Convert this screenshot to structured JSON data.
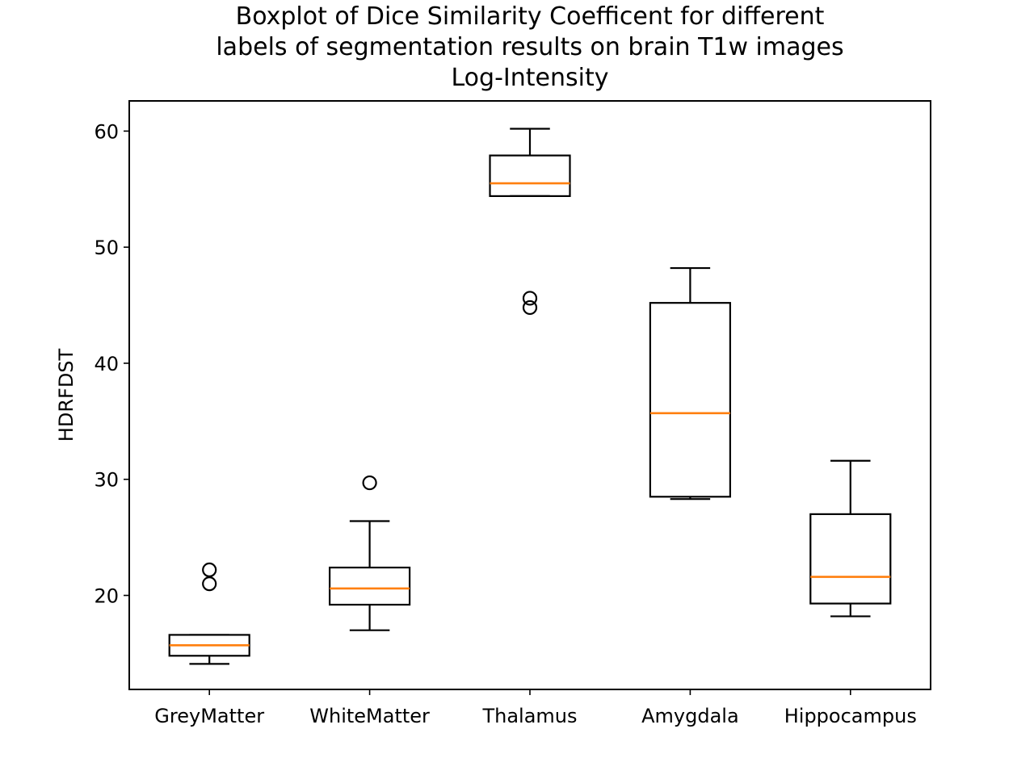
{
  "chart_data": {
    "type": "boxplot",
    "title_lines": [
      "Boxplot of Dice Similarity Coefficent for different",
      "labels of segmentation results on brain T1w images",
      "Log-Intensity"
    ],
    "xlabel": "",
    "ylabel": "HDRFDST",
    "ylim": [
      11.9,
      62.6
    ],
    "yticks": [
      20,
      30,
      40,
      50,
      60
    ],
    "categories": [
      "GreyMatter",
      "WhiteMatter",
      "Thalamus",
      "Amygdala",
      "Hippocampus"
    ],
    "boxes": [
      {
        "label": "GreyMatter",
        "whisker_low": 14.1,
        "q1": 14.8,
        "median": 15.7,
        "q3": 16.6,
        "whisker_high": 16.6,
        "outliers": [
          21.0,
          22.2
        ]
      },
      {
        "label": "WhiteMatter",
        "whisker_low": 17.0,
        "q1": 19.2,
        "median": 20.6,
        "q3": 22.4,
        "whisker_high": 26.4,
        "outliers": [
          29.7
        ]
      },
      {
        "label": "Thalamus",
        "whisker_low": 54.4,
        "q1": 54.4,
        "median": 55.5,
        "q3": 57.9,
        "whisker_high": 60.2,
        "outliers": [
          44.8,
          45.6
        ]
      },
      {
        "label": "Amygdala",
        "whisker_low": 28.3,
        "q1": 28.5,
        "median": 35.7,
        "q3": 45.2,
        "whisker_high": 48.2,
        "outliers": []
      },
      {
        "label": "Hippocampus",
        "whisker_low": 18.2,
        "q1": 19.3,
        "median": 21.6,
        "q3": 27.0,
        "whisker_high": 31.6,
        "outliers": []
      }
    ],
    "grid": false,
    "colors": {
      "box": "#000000",
      "median": "#ff7f0e",
      "outlier": "#000000"
    }
  }
}
